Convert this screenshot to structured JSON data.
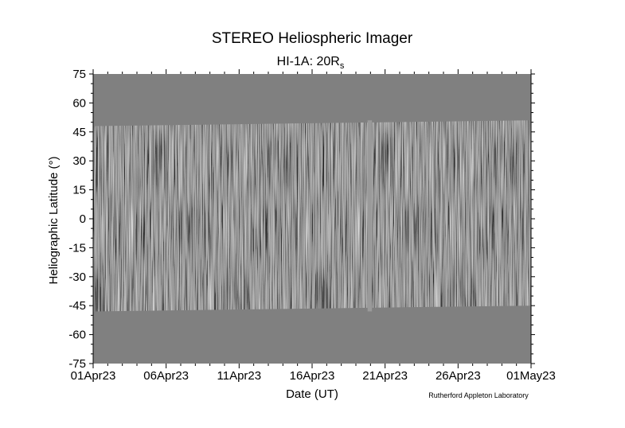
{
  "chart_data": {
    "type": "heatmap",
    "title": "STEREO Heliospheric Imager",
    "subtitle_main": "HI-1A: 20R",
    "subtitle_sub": "s",
    "xlabel": "Date (UT)",
    "ylabel": "Heliographic Latitude (°)",
    "credit": "Rutherford Appleton Laboratory",
    "x_ticks": [
      "01Apr23",
      "06Apr23",
      "11Apr23",
      "16Apr23",
      "21Apr23",
      "26Apr23",
      "01May23"
    ],
    "x_tick_days": [
      0,
      5,
      10,
      15,
      20,
      25,
      30
    ],
    "xlim_days": [
      0,
      30
    ],
    "y_ticks": [
      75,
      60,
      45,
      30,
      15,
      0,
      -15,
      -30,
      -45,
      -60,
      -75
    ],
    "ylim": [
      -75,
      75
    ],
    "data_coverage_latitude": {
      "north_edge": [
        48,
        51
      ],
      "south_edge": [
        -48,
        -45
      ]
    },
    "data_gaps": [
      {
        "start_day": 18.8,
        "end_day": 19.1
      }
    ],
    "colors": {
      "background_gray": "#808080"
    }
  }
}
